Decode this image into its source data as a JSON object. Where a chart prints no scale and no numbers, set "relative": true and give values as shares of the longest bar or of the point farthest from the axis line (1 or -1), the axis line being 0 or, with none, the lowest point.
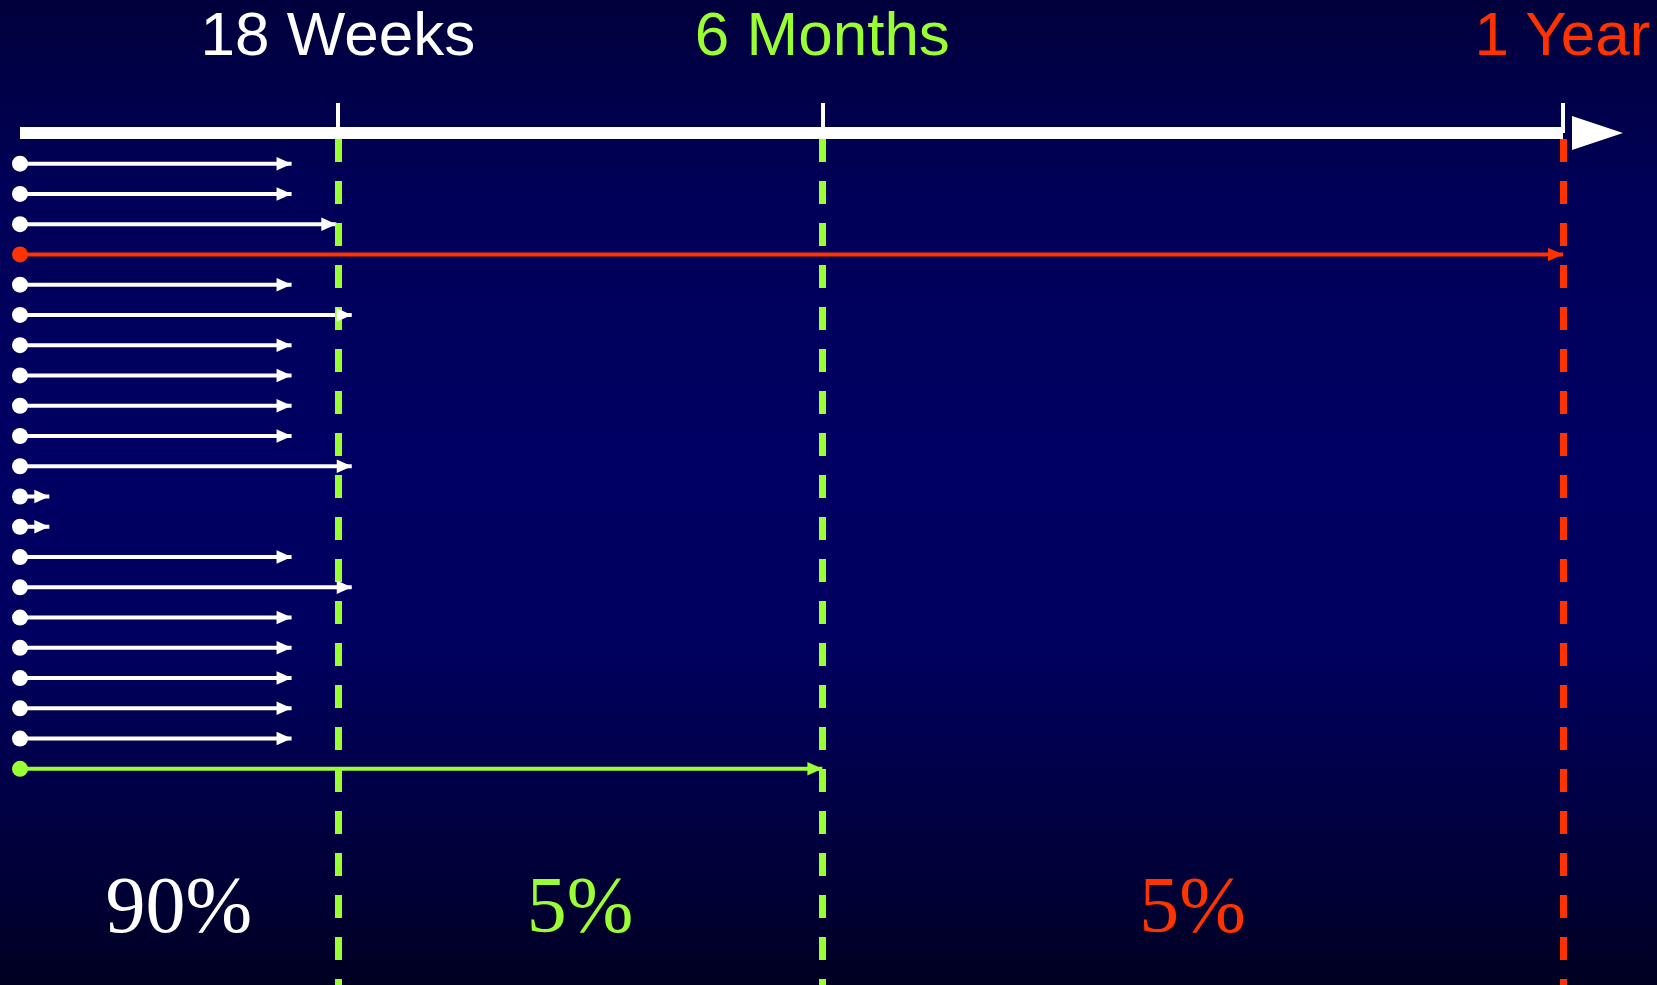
{
  "chart_data": {
    "type": "bar",
    "orientation": "horizontal",
    "relative": true,
    "categories": [
      null,
      null,
      null,
      null,
      null,
      null,
      null,
      null,
      null,
      null,
      null,
      null,
      null,
      null,
      null,
      null,
      null,
      null,
      null,
      null,
      null
    ],
    "values": [
      0.176,
      0.176,
      0.205,
      1,
      0.176,
      0.215,
      0.176,
      0.176,
      0.176,
      0.176,
      0.215,
      0.019,
      0.019,
      0.176,
      0.215,
      0.176,
      0.176,
      0.176,
      0.176,
      0.176,
      0.52
    ],
    "colors": [
      "#ffffff",
      "#ffffff",
      "#ffffff",
      "#ff3300",
      "#ffffff",
      "#ffffff",
      "#ffffff",
      "#ffffff",
      "#ffffff",
      "#ffffff",
      "#ffffff",
      "#ffffff",
      "#ffffff",
      "#ffffff",
      "#ffffff",
      "#ffffff",
      "#ffffff",
      "#ffffff",
      "#ffffff",
      "#ffffff",
      "#99ff33"
    ],
    "ref_lines": [
      {
        "axis": "x",
        "value": 0.206,
        "label": "18 Weeks",
        "color": "#99ff33",
        "line_style": "dashed"
      },
      {
        "axis": "x",
        "value": 0.52,
        "label": "6 Months",
        "color": "#99ff33",
        "line_style": "dashed"
      },
      {
        "axis": "x",
        "value": 1,
        "label": "1 Year",
        "color": "#ff3300",
        "line_style": "dashed"
      }
    ],
    "annotations": [
      "90%",
      "5%",
      "5%"
    ]
  }
}
